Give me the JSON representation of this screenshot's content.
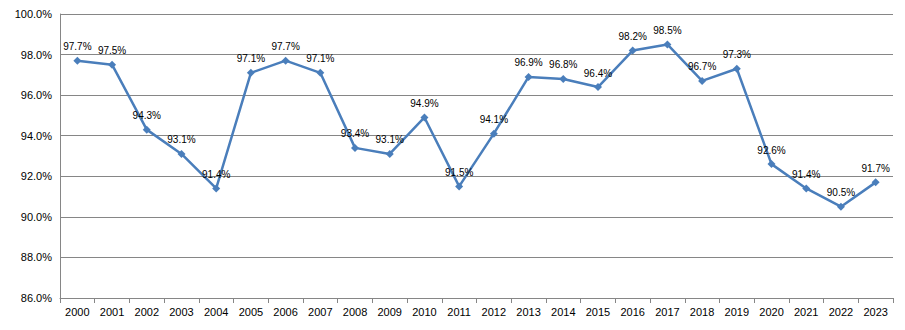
{
  "chart_data": {
    "type": "line",
    "categories": [
      "2000",
      "2001",
      "2002",
      "2003",
      "2004",
      "2005",
      "2006",
      "2007",
      "2008",
      "2009",
      "2010",
      "2011",
      "2012",
      "2013",
      "2014",
      "2015",
      "2016",
      "2017",
      "2018",
      "2019",
      "2020",
      "2021",
      "2022",
      "2023"
    ],
    "values": [
      97.7,
      97.5,
      94.3,
      93.1,
      91.4,
      97.1,
      97.7,
      97.1,
      93.4,
      93.1,
      94.9,
      91.5,
      94.1,
      96.9,
      96.8,
      96.4,
      98.2,
      98.5,
      96.7,
      97.3,
      92.6,
      91.4,
      90.5,
      91.7
    ],
    "value_labels": [
      "97.7%",
      "97.5%",
      "94.3%",
      "93.1%",
      "91.4%",
      "97.1%",
      "97.7%",
      "97.1%",
      "93.4%",
      "93.1%",
      "94.9%",
      "91.5%",
      "94.1%",
      "96.9%",
      "96.8%",
      "96.4%",
      "98.2%",
      "98.5%",
      "96.7%",
      "97.3%",
      "92.6%",
      "91.4%",
      "90.5%",
      "91.7%"
    ],
    "color": "#4a7ebb",
    "marker": "diamond",
    "line_style": "solid",
    "data_labels": true,
    "ylim": [
      86,
      100
    ],
    "yticks": [
      {
        "value": 86,
        "label": "86.0%"
      },
      {
        "value": 88,
        "label": "88.0%"
      },
      {
        "value": 90,
        "label": "90.0%"
      },
      {
        "value": 92,
        "label": "92.0%"
      },
      {
        "value": 94,
        "label": "94.0%"
      },
      {
        "value": 96,
        "label": "96.0%"
      },
      {
        "value": 98,
        "label": "98.0%"
      },
      {
        "value": 100,
        "label": "100.0%"
      }
    ],
    "grid": true
  }
}
